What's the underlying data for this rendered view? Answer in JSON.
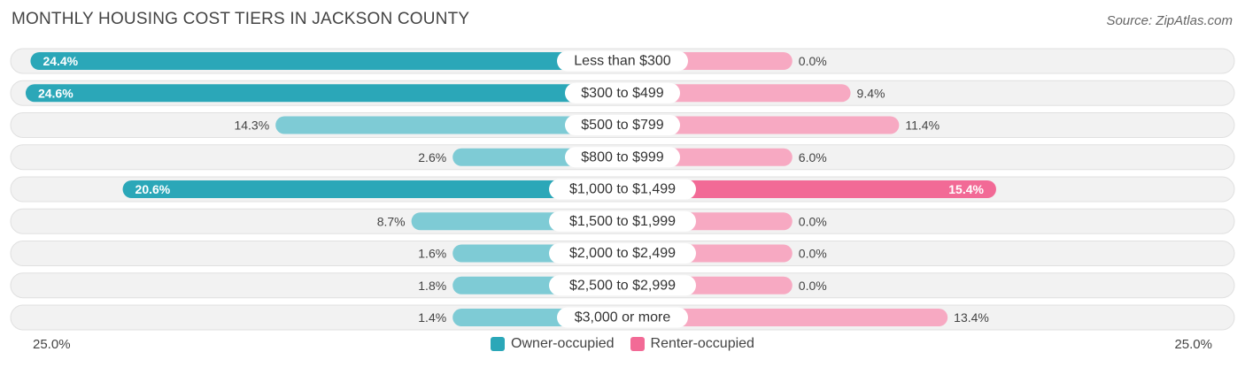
{
  "title": "MONTHLY HOUSING COST TIERS IN JACKSON COUNTY",
  "source": "Source: ZipAtlas.com",
  "colors": {
    "owner": "#2ba7b8",
    "owner_light": "#7ecbd5",
    "renter": "#f26a96",
    "renter_light": "#f7a9c2",
    "row_bg": "#f2f2f2"
  },
  "chart_data": {
    "type": "bar",
    "orientation": "horizontal-diverging",
    "title": "MONTHLY HOUSING COST TIERS IN JACKSON COUNTY",
    "categories": [
      "Less than $300",
      "$300 to $499",
      "$500 to $799",
      "$800 to $999",
      "$1,000 to $1,499",
      "$1,500 to $1,999",
      "$2,000 to $2,499",
      "$2,500 to $2,999",
      "$3,000 or more"
    ],
    "series": [
      {
        "name": "Owner-occupied",
        "values": [
          24.4,
          24.6,
          14.3,
          2.6,
          20.6,
          8.7,
          1.6,
          1.8,
          1.4
        ]
      },
      {
        "name": "Renter-occupied",
        "values": [
          0.0,
          9.4,
          11.4,
          6.0,
          15.4,
          0.0,
          0.0,
          0.0,
          13.4
        ]
      }
    ],
    "value_labels": {
      "owner": [
        "24.4%",
        "24.6%",
        "14.3%",
        "2.6%",
        "20.6%",
        "8.7%",
        "1.6%",
        "1.8%",
        "1.4%"
      ],
      "renter": [
        "0.0%",
        "9.4%",
        "11.4%",
        "6.0%",
        "15.4%",
        "0.0%",
        "0.0%",
        "0.0%",
        "13.4%"
      ]
    },
    "xlim": [
      -25,
      25
    ],
    "axis_labels": {
      "left": "25.0%",
      "right": "25.0%"
    },
    "legend": [
      "Owner-occupied",
      "Renter-occupied"
    ]
  }
}
